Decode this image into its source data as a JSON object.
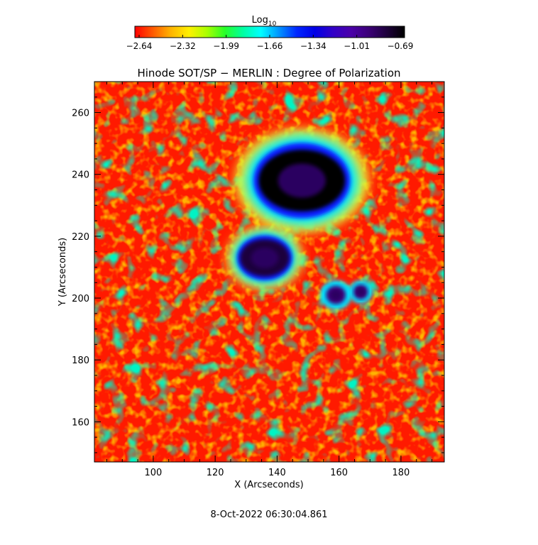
{
  "colorbar": {
    "label_main": "Log",
    "label_sub": "10",
    "ticks": [
      "−2.64",
      "−2.32",
      "−1.99",
      "−1.66",
      "−1.34",
      "−1.01",
      "−0.69"
    ],
    "colors": [
      "#ff0000",
      "#ff5a00",
      "#ffb400",
      "#fff000",
      "#aaff00",
      "#28ff28",
      "#00ffa0",
      "#00ffff",
      "#0096ff",
      "#0028ff",
      "#0000e6",
      "#3200c8",
      "#4b00aa",
      "#3c0078",
      "#1e003c",
      "#000000"
    ]
  },
  "footer": {
    "timestamp": "8-Oct-2022 06:30:04.861"
  },
  "chart_data": {
    "type": "heatmap",
    "title": "Hinode SOT/SP − MERLIN : Degree of Polarization",
    "xlabel": "X (Arcseconds)",
    "ylabel": "Y (Arcseconds)",
    "xlim": [
      81,
      194
    ],
    "ylim": [
      147,
      270
    ],
    "xticks": [
      100,
      120,
      140,
      160,
      180
    ],
    "yticks": [
      160,
      180,
      200,
      220,
      240,
      260
    ],
    "value_range": [
      -2.64,
      -0.69
    ],
    "value_label": "Log10",
    "features": [
      {
        "name": "main sunspot umbra",
        "x": 148,
        "y": 238,
        "log_value": -0.75
      },
      {
        "name": "secondary umbra",
        "x": 136,
        "y": 213,
        "log_value": -0.8
      },
      {
        "name": "pore",
        "x": 159,
        "y": 201,
        "log_value": -0.9
      },
      {
        "name": "pore",
        "x": 167,
        "y": 202,
        "log_value": -0.95
      }
    ]
  }
}
